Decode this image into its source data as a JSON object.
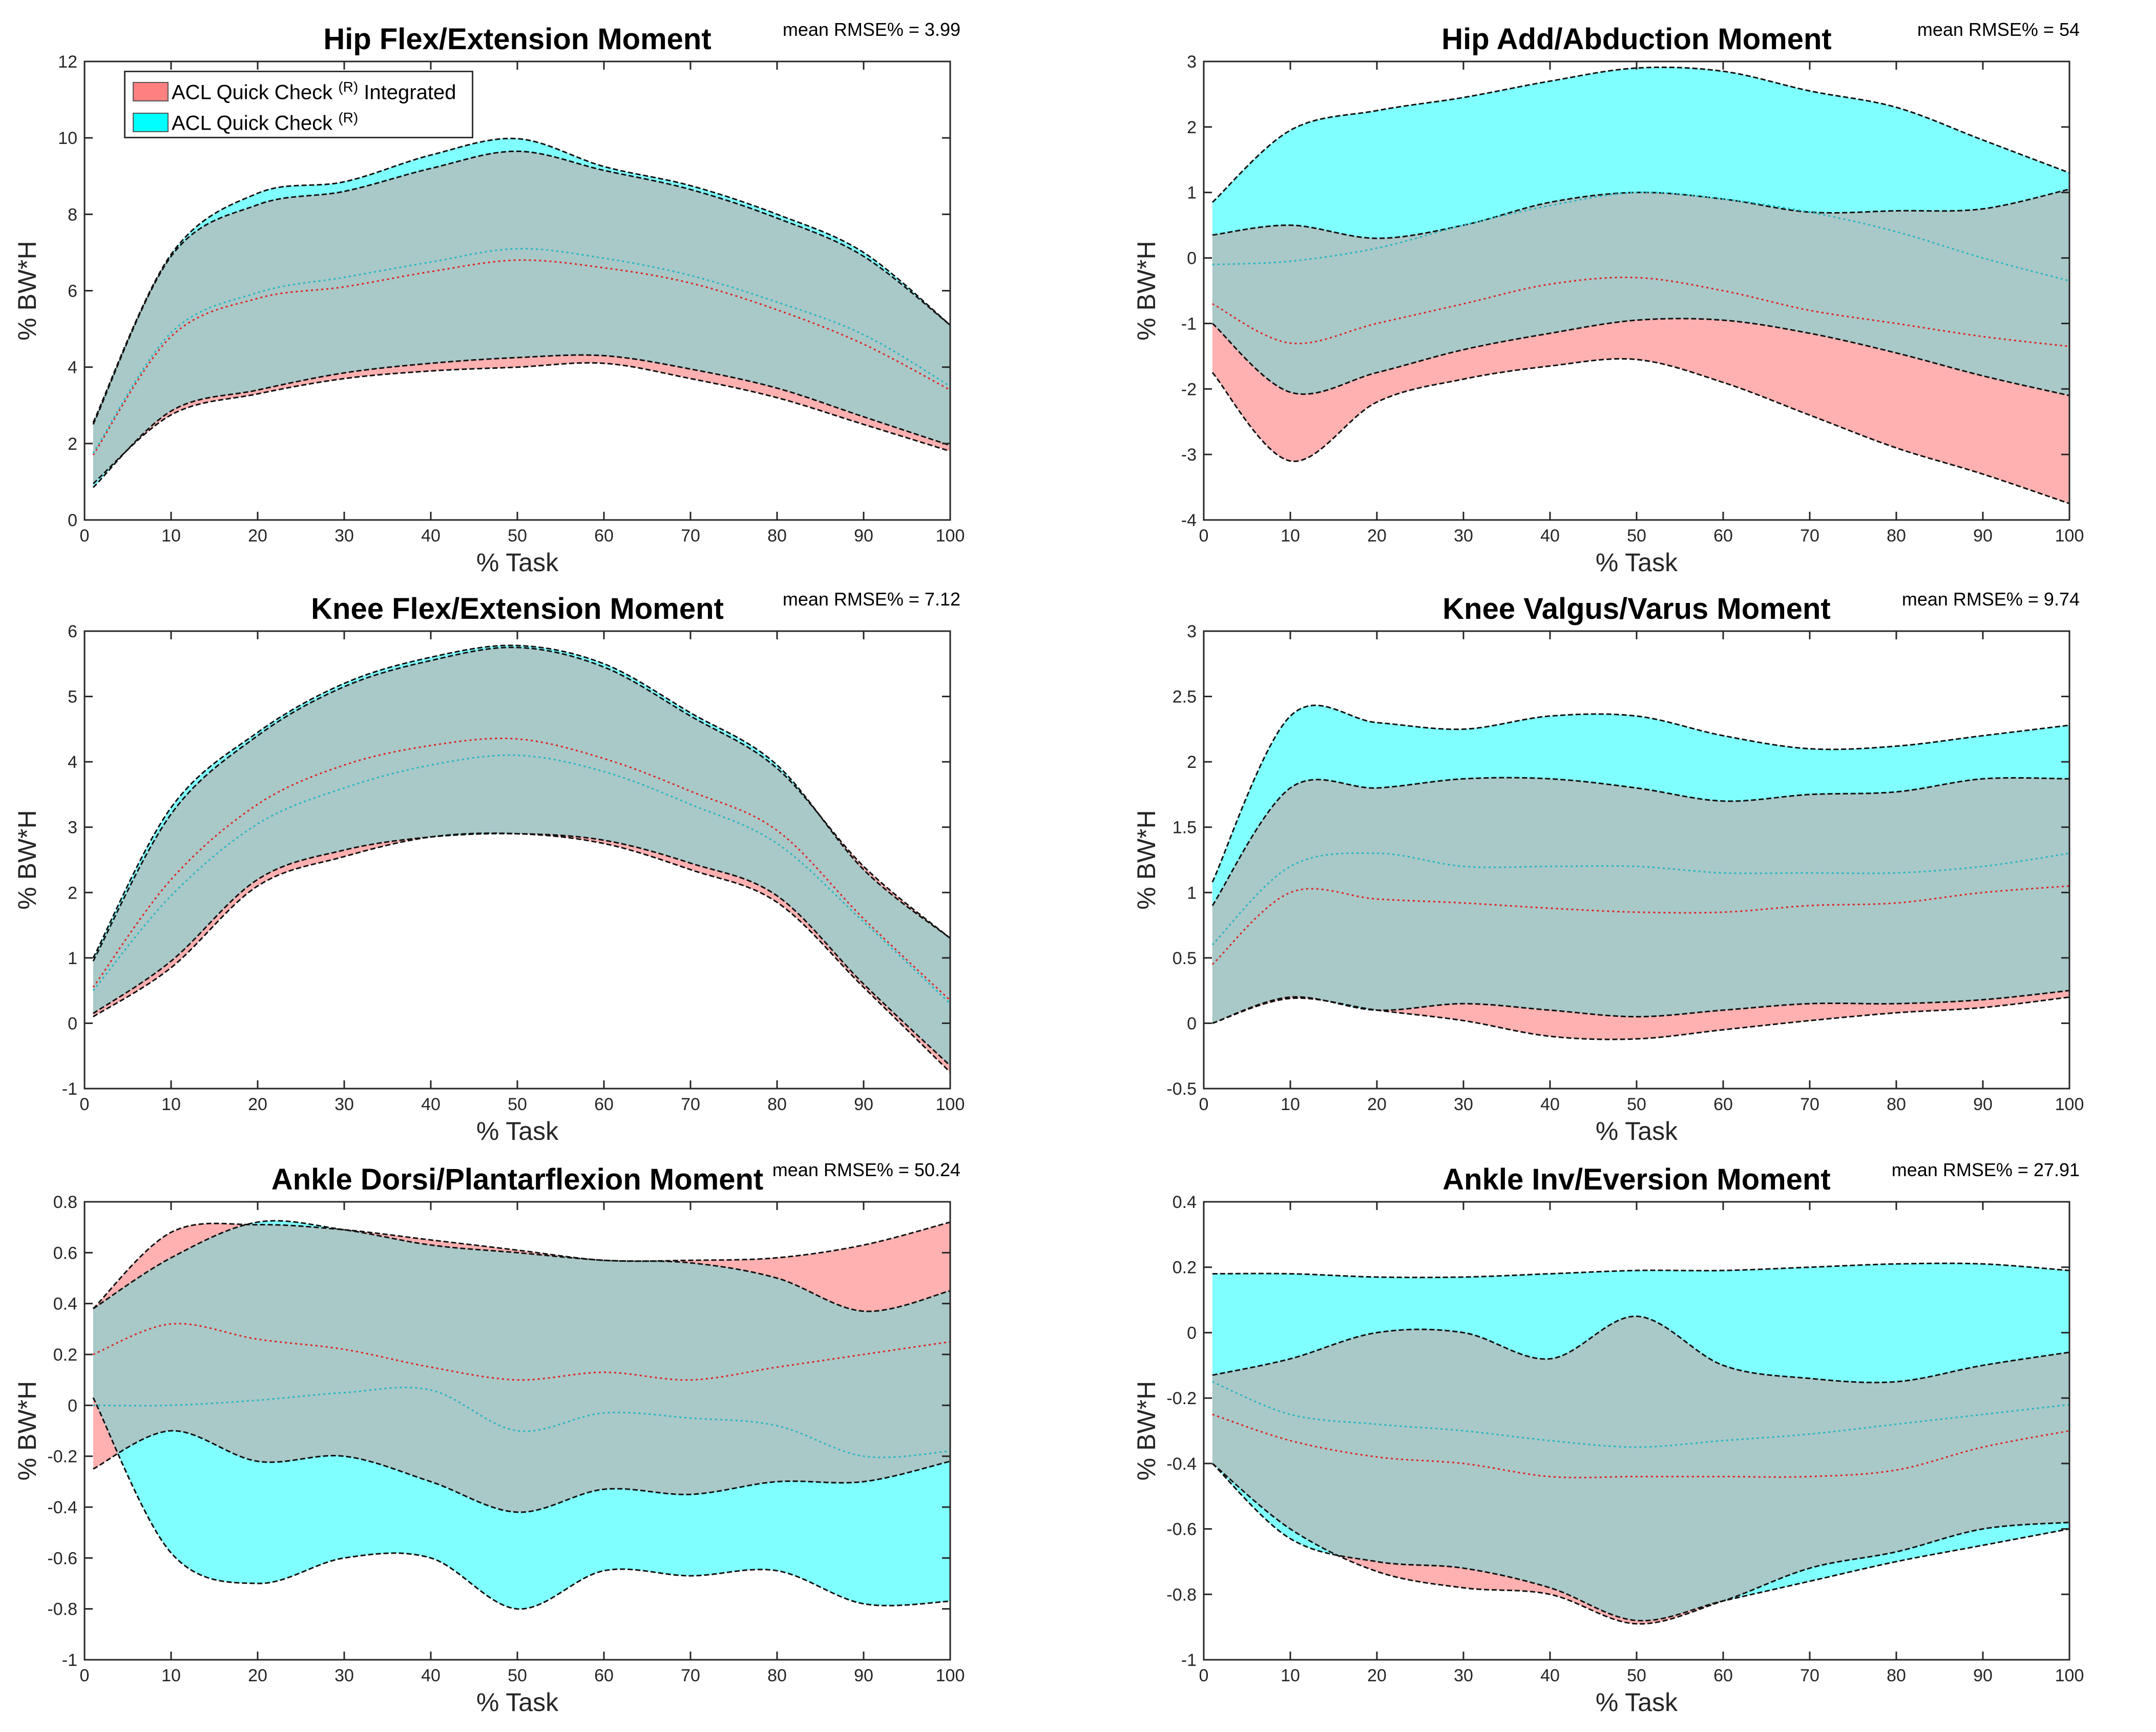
{
  "legend": {
    "integrated": {
      "label": "ACL Quick Check",
      "sup": "(R)",
      "suffix": " Integrated",
      "color": "#ff8080"
    },
    "standard": {
      "label": "ACL Quick Check",
      "sup": "(R)",
      "suffix": "",
      "color": "#00ffff"
    },
    "overlap_color": "#a9c8c8"
  },
  "chart_data": [
    {
      "type": "area",
      "title": "Hip Flex/Extension Moment",
      "rmse_label": "mean RMSE% = 3.99",
      "xlabel": "% Task",
      "ylabel": "% BW*H",
      "xlim": [
        0,
        100
      ],
      "ylim": [
        0,
        12
      ],
      "xticks": [
        0,
        10,
        20,
        30,
        40,
        50,
        60,
        70,
        80,
        90,
        100
      ],
      "xtick_labels": [
        "0",
        "10",
        "20",
        "30",
        "40",
        "50",
        "60",
        "70",
        "80",
        "90",
        "100"
      ],
      "yticks": [
        0,
        2,
        4,
        6,
        8,
        10,
        12
      ],
      "ytick_labels": [
        "0",
        "2",
        "4",
        "6",
        "8",
        "10",
        "12"
      ],
      "x": [
        1,
        10,
        20,
        30,
        40,
        50,
        60,
        70,
        80,
        90,
        100
      ],
      "series": [
        {
          "name": "ACL Quick Check (R) Integrated",
          "upper": [
            2.5,
            6.9,
            8.25,
            8.6,
            9.2,
            9.65,
            9.15,
            8.65,
            7.9,
            6.9,
            5.1
          ],
          "lower": [
            0.95,
            2.75,
            3.3,
            3.7,
            3.9,
            4.0,
            4.1,
            3.7,
            3.2,
            2.5,
            1.8
          ],
          "mean": [
            1.7,
            4.8,
            5.8,
            6.1,
            6.5,
            6.8,
            6.6,
            6.2,
            5.5,
            4.6,
            3.4
          ]
        },
        {
          "name": "ACL Quick Check (R)",
          "upper": [
            2.55,
            6.95,
            8.55,
            8.85,
            9.55,
            9.98,
            9.25,
            8.75,
            8.0,
            7.0,
            5.1
          ],
          "lower": [
            0.85,
            2.85,
            3.4,
            3.85,
            4.1,
            4.25,
            4.3,
            3.95,
            3.45,
            2.7,
            1.95
          ],
          "mean": [
            1.75,
            4.9,
            5.95,
            6.35,
            6.75,
            7.1,
            6.85,
            6.4,
            5.7,
            4.85,
            3.5
          ]
        }
      ]
    },
    {
      "type": "area",
      "title": "Hip Add/Abduction Moment",
      "rmse_label": "mean RMSE% = 54",
      "xlabel": "% Task",
      "ylabel": "% BW*H",
      "xlim": [
        0,
        100
      ],
      "ylim": [
        -4,
        3
      ],
      "xticks": [
        0,
        10,
        20,
        30,
        40,
        50,
        60,
        70,
        80,
        90,
        100
      ],
      "xtick_labels": [
        "0",
        "10",
        "20",
        "30",
        "40",
        "50",
        "60",
        "70",
        "80",
        "90",
        "100"
      ],
      "yticks": [
        -4,
        -3,
        -2,
        -1,
        0,
        1,
        2,
        3
      ],
      "ytick_labels": [
        "-4",
        "-3",
        "-2",
        "-1",
        "0",
        "1",
        "2",
        "3"
      ],
      "x": [
        1,
        10,
        20,
        30,
        40,
        50,
        60,
        70,
        80,
        90,
        100
      ],
      "series": [
        {
          "name": "ACL Quick Check (R) Integrated",
          "upper": [
            0.35,
            0.5,
            0.3,
            0.5,
            0.85,
            1.0,
            0.9,
            0.7,
            0.72,
            0.75,
            1.05
          ],
          "lower": [
            -1.75,
            -3.1,
            -2.2,
            -1.85,
            -1.65,
            -1.55,
            -1.9,
            -2.4,
            -2.9,
            -3.3,
            -3.75
          ],
          "mean": [
            -0.7,
            -1.3,
            -1.0,
            -0.7,
            -0.4,
            -0.3,
            -0.5,
            -0.8,
            -1.0,
            -1.2,
            -1.35
          ]
        },
        {
          "name": "ACL Quick Check (R)",
          "upper": [
            0.85,
            1.95,
            2.25,
            2.45,
            2.7,
            2.9,
            2.85,
            2.55,
            2.3,
            1.8,
            1.3
          ],
          "lower": [
            -1.0,
            -2.05,
            -1.75,
            -1.4,
            -1.15,
            -0.95,
            -0.95,
            -1.15,
            -1.45,
            -1.8,
            -2.1
          ],
          "mean": [
            -0.1,
            -0.05,
            0.15,
            0.5,
            0.8,
            1.0,
            0.9,
            0.7,
            0.4,
            0.0,
            -0.35
          ]
        }
      ]
    },
    {
      "type": "area",
      "title": "Knee Flex/Extension Moment",
      "rmse_label": "mean RMSE% = 7.12",
      "xlabel": "% Task",
      "ylabel": "% BW*H",
      "xlim": [
        0,
        100
      ],
      "ylim": [
        -1,
        6
      ],
      "xticks": [
        0,
        10,
        20,
        30,
        40,
        50,
        60,
        70,
        80,
        90,
        100
      ],
      "xtick_labels": [
        "0",
        "10",
        "20",
        "30",
        "40",
        "50",
        "60",
        "70",
        "80",
        "90",
        "100"
      ],
      "yticks": [
        -1,
        0,
        1,
        2,
        3,
        4,
        5,
        6
      ],
      "ytick_labels": [
        "-1",
        "0",
        "1",
        "2",
        "3",
        "4",
        "5",
        "6"
      ],
      "x": [
        1,
        10,
        20,
        30,
        40,
        50,
        60,
        70,
        80,
        90,
        100
      ],
      "series": [
        {
          "name": "ACL Quick Check (R) Integrated",
          "upper": [
            0.95,
            3.2,
            4.4,
            5.15,
            5.55,
            5.75,
            5.45,
            4.7,
            3.9,
            2.4,
            1.3
          ],
          "lower": [
            0.1,
            0.85,
            2.1,
            2.55,
            2.85,
            2.9,
            2.75,
            2.35,
            1.85,
            0.55,
            -0.75
          ],
          "mean": [
            0.55,
            2.2,
            3.35,
            3.95,
            4.25,
            4.35,
            4.05,
            3.55,
            2.95,
            1.6,
            0.35
          ]
        },
        {
          "name": "ACL Quick Check (R)",
          "upper": [
            1.0,
            3.3,
            4.45,
            5.2,
            5.6,
            5.78,
            5.5,
            4.75,
            3.95,
            2.35,
            1.3
          ],
          "lower": [
            0.15,
            0.95,
            2.2,
            2.65,
            2.85,
            2.9,
            2.8,
            2.45,
            1.95,
            0.6,
            -0.65
          ],
          "mean": [
            0.5,
            1.95,
            3.05,
            3.6,
            3.95,
            4.1,
            3.85,
            3.35,
            2.75,
            1.55,
            0.3
          ]
        }
      ]
    },
    {
      "type": "area",
      "title": "Knee Valgus/Varus Moment",
      "rmse_label": "mean RMSE% = 9.74",
      "xlabel": "% Task",
      "ylabel": "% BW*H",
      "xlim": [
        0,
        100
      ],
      "ylim": [
        -0.5,
        3
      ],
      "xticks": [
        0,
        10,
        20,
        30,
        40,
        50,
        60,
        70,
        80,
        90,
        100
      ],
      "xtick_labels": [
        "0",
        "10",
        "20",
        "30",
        "40",
        "50",
        "60",
        "70",
        "80",
        "90",
        "100"
      ],
      "yticks": [
        -0.5,
        0,
        0.5,
        1,
        1.5,
        2,
        2.5,
        3
      ],
      "ytick_labels": [
        "-0.5",
        "0",
        "0.5",
        "1",
        "1.5",
        "2",
        "2.5",
        "3"
      ],
      "x": [
        1,
        10,
        20,
        30,
        40,
        50,
        60,
        70,
        80,
        90,
        100
      ],
      "series": [
        {
          "name": "ACL Quick Check (R) Integrated",
          "upper": [
            0.9,
            1.8,
            1.8,
            1.87,
            1.87,
            1.8,
            1.7,
            1.75,
            1.77,
            1.87,
            1.87
          ],
          "lower": [
            0.0,
            0.19,
            0.1,
            0.02,
            -0.1,
            -0.12,
            -0.05,
            0.02,
            0.08,
            0.12,
            0.2
          ],
          "mean": [
            0.45,
            1.0,
            0.95,
            0.92,
            0.88,
            0.85,
            0.85,
            0.9,
            0.92,
            1.0,
            1.05
          ]
        },
        {
          "name": "ACL Quick Check (R)",
          "upper": [
            1.08,
            2.35,
            2.3,
            2.25,
            2.35,
            2.35,
            2.2,
            2.1,
            2.12,
            2.2,
            2.28
          ],
          "lower": [
            0.0,
            0.2,
            0.1,
            0.15,
            0.1,
            0.05,
            0.1,
            0.15,
            0.15,
            0.18,
            0.25
          ],
          "mean": [
            0.6,
            1.2,
            1.3,
            1.2,
            1.2,
            1.2,
            1.15,
            1.15,
            1.15,
            1.2,
            1.3
          ]
        }
      ]
    },
    {
      "type": "area",
      "title": "Ankle Dorsi/Plantarflexion Moment",
      "rmse_label": "mean RMSE% = 50.24",
      "xlabel": "% Task",
      "ylabel": "% BW*H",
      "xlim": [
        0,
        100
      ],
      "ylim": [
        -1,
        0.8
      ],
      "xticks": [
        0,
        10,
        20,
        30,
        40,
        50,
        60,
        70,
        80,
        90,
        100
      ],
      "xtick_labels": [
        "0",
        "10",
        "20",
        "30",
        "40",
        "50",
        "60",
        "70",
        "80",
        "90",
        "100"
      ],
      "yticks": [
        -1,
        -0.8,
        -0.6,
        -0.4,
        -0.2,
        0,
        0.2,
        0.4,
        0.6,
        0.8
      ],
      "ytick_labels": [
        "-1",
        "-0.8",
        "-0.6",
        "-0.4",
        "-0.2",
        "0",
        "0.2",
        "0.4",
        "0.6",
        "0.8"
      ],
      "x": [
        1,
        10,
        20,
        30,
        40,
        50,
        60,
        70,
        80,
        90,
        100
      ],
      "series": [
        {
          "name": "ACL Quick Check (R) Integrated",
          "upper": [
            0.38,
            0.68,
            0.71,
            0.69,
            0.65,
            0.61,
            0.57,
            0.57,
            0.58,
            0.63,
            0.72
          ],
          "lower": [
            -0.25,
            -0.1,
            -0.22,
            -0.2,
            -0.3,
            -0.42,
            -0.33,
            -0.35,
            -0.3,
            -0.3,
            -0.22
          ],
          "mean": [
            0.2,
            0.32,
            0.26,
            0.22,
            0.15,
            0.1,
            0.13,
            0.1,
            0.15,
            0.2,
            0.25
          ]
        },
        {
          "name": "ACL Quick Check (R)",
          "upper": [
            0.38,
            0.58,
            0.72,
            0.69,
            0.63,
            0.6,
            0.57,
            0.56,
            0.5,
            0.37,
            0.45
          ],
          "lower": [
            0.03,
            -0.58,
            -0.7,
            -0.6,
            -0.6,
            -0.8,
            -0.65,
            -0.67,
            -0.65,
            -0.78,
            -0.77
          ],
          "mean": [
            0.0,
            0.0,
            0.02,
            0.05,
            0.06,
            -0.1,
            -0.03,
            -0.05,
            -0.08,
            -0.2,
            -0.18
          ]
        }
      ]
    },
    {
      "type": "area",
      "title": "Ankle Inv/Eversion Moment",
      "rmse_label": "mean RMSE% = 27.91",
      "xlabel": "% Task",
      "ylabel": "% BW*H",
      "xlim": [
        0,
        100
      ],
      "ylim": [
        -1,
        0.4
      ],
      "xticks": [
        0,
        10,
        20,
        30,
        40,
        50,
        60,
        70,
        80,
        90,
        100
      ],
      "xtick_labels": [
        "0",
        "10",
        "20",
        "30",
        "40",
        "50",
        "60",
        "70",
        "80",
        "90",
        "100"
      ],
      "yticks": [
        -1,
        -0.8,
        -0.6,
        -0.4,
        -0.2,
        0,
        0.2,
        0.4
      ],
      "ytick_labels": [
        "-1",
        "-0.8",
        "-0.6",
        "-0.4",
        "-0.2",
        "0",
        "0.2",
        "0.4"
      ],
      "x": [
        1,
        10,
        20,
        30,
        40,
        50,
        60,
        70,
        80,
        90,
        100
      ],
      "series": [
        {
          "name": "ACL Quick Check (R) Integrated",
          "upper": [
            -0.13,
            -0.08,
            0.0,
            0.0,
            -0.08,
            0.05,
            -0.1,
            -0.14,
            -0.15,
            -0.1,
            -0.06
          ],
          "lower": [
            -0.4,
            -0.6,
            -0.73,
            -0.78,
            -0.8,
            -0.89,
            -0.82,
            -0.72,
            -0.67,
            -0.6,
            -0.58
          ],
          "mean": [
            -0.25,
            -0.33,
            -0.38,
            -0.4,
            -0.44,
            -0.44,
            -0.44,
            -0.44,
            -0.42,
            -0.35,
            -0.3
          ]
        },
        {
          "name": "ACL Quick Check (R)",
          "upper": [
            0.18,
            0.18,
            0.17,
            0.17,
            0.18,
            0.19,
            0.19,
            0.2,
            0.21,
            0.21,
            0.19
          ],
          "lower": [
            -0.4,
            -0.63,
            -0.7,
            -0.72,
            -0.78,
            -0.88,
            -0.82,
            -0.76,
            -0.7,
            -0.65,
            -0.6
          ],
          "mean": [
            -0.15,
            -0.25,
            -0.28,
            -0.3,
            -0.33,
            -0.35,
            -0.33,
            -0.31,
            -0.28,
            -0.25,
            -0.22
          ]
        }
      ]
    }
  ]
}
